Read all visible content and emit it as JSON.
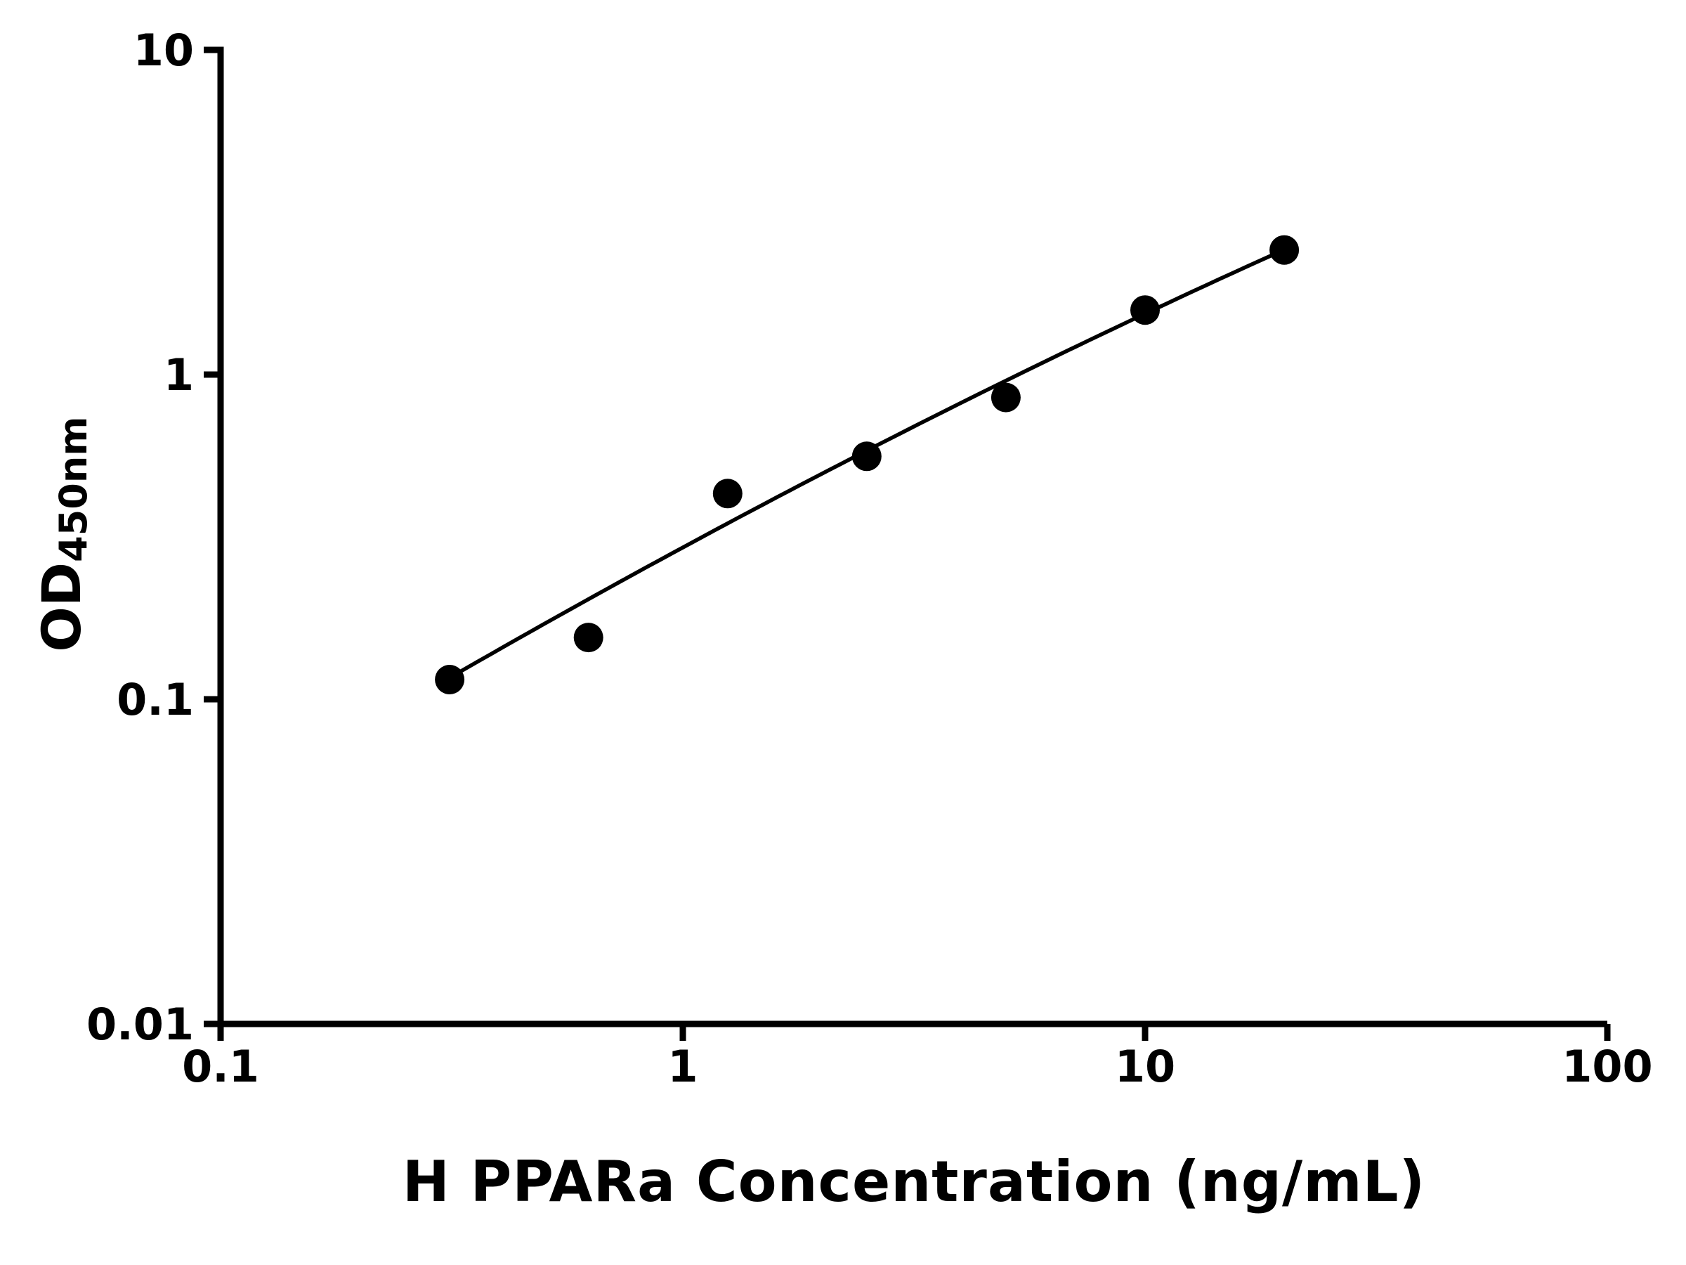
{
  "chart_data": {
    "type": "scatter",
    "title": "",
    "xlabel": "H PPARa Concentration (ng/mL)",
    "ylabel_main": "OD",
    "ylabel_sub": "450nm",
    "x_scale": "log",
    "y_scale": "log",
    "xlim": [
      0.1,
      100
    ],
    "ylim": [
      0.01,
      10
    ],
    "x_ticks": [
      0.1,
      1,
      10,
      100
    ],
    "x_tick_labels": [
      "0.1",
      "1",
      "10",
      "100"
    ],
    "y_ticks": [
      0.01,
      0.1,
      1,
      10
    ],
    "y_tick_labels": [
      "0.01",
      "0.1",
      "1",
      "10"
    ],
    "grid": false,
    "legend": null,
    "marker_color": "#000000",
    "line_color": "#000000",
    "points": {
      "x": [
        0.313,
        0.625,
        1.25,
        2.5,
        5,
        10,
        20
      ],
      "y": [
        0.115,
        0.155,
        0.43,
        0.56,
        0.85,
        1.58,
        2.42
      ]
    },
    "trendline": {
      "type": "log-log-quadratic",
      "coeffs": {
        "a": -0.5325,
        "b": 0.77,
        "c": -0.05
      },
      "x_range": [
        0.316,
        20
      ]
    }
  }
}
